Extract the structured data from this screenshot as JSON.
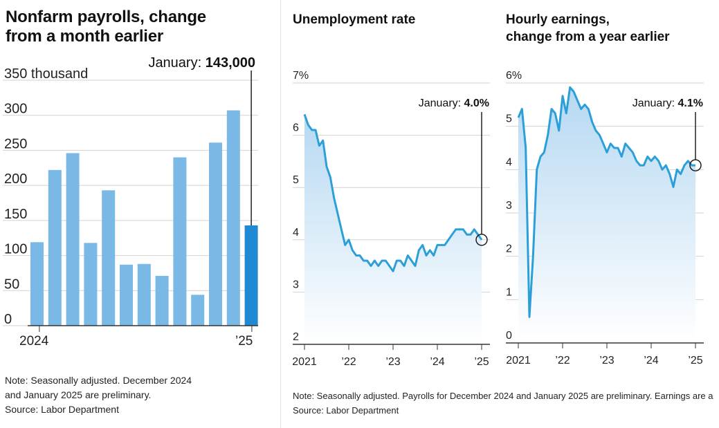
{
  "payrolls": {
    "title_line1": "Nonfarm payrolls, change",
    "title_line2": "from a month earlier",
    "note_line1": "Note: Seasonally adjusted. December 2024",
    "note_line2": "and January 2025 are preliminary.",
    "source": "Source: Labor Department"
  },
  "unemployment": {
    "title": "Unemployment rate"
  },
  "earnings": {
    "title_line1": "Hourly earnings,",
    "title_line2": "change from a year earlier"
  },
  "right_note": {
    "line1": "Note: Seasonally adjusted. Payrolls for December 2024 and January 2025 are preliminary. Earnings are a",
    "line2": "Source: Labor Department"
  },
  "colors": {
    "bar": "#7ab8e6",
    "bar_highlight": "#1f8ad3",
    "line": "#2b9fd8",
    "area_top": "#b5d8f2",
    "grid": "#d2d2d2",
    "axis": "#333333"
  },
  "chart_data": [
    {
      "type": "bar",
      "name": "payrolls",
      "categories": [
        "2024-01",
        "2024-02",
        "2024-03",
        "2024-04",
        "2024-05",
        "2024-06",
        "2024-07",
        "2024-08",
        "2024-09",
        "2024-10",
        "2024-11",
        "2024-12",
        "2025-01"
      ],
      "values": [
        119,
        222,
        246,
        118,
        193,
        87,
        88,
        71,
        240,
        44,
        261,
        307,
        143
      ],
      "ylim": [
        0,
        350
      ],
      "yticks": [
        "350 thousand",
        "300",
        "250",
        "200",
        "150",
        "100",
        "50",
        "0"
      ],
      "ytick_values": [
        350,
        300,
        250,
        200,
        150,
        100,
        50,
        0
      ],
      "xtick_labels": [
        "2024",
        "’25"
      ],
      "highlight_index": 12,
      "annotation_prefix": "January:",
      "annotation_value": "143,000"
    },
    {
      "type": "area",
      "name": "unemployment",
      "x_start": "2021-01",
      "values": [
        6.4,
        6.2,
        6.1,
        6.1,
        5.8,
        5.9,
        5.4,
        5.2,
        4.8,
        4.5,
        4.2,
        3.9,
        4.0,
        3.8,
        3.7,
        3.7,
        3.6,
        3.6,
        3.5,
        3.6,
        3.5,
        3.6,
        3.6,
        3.5,
        3.4,
        3.6,
        3.6,
        3.5,
        3.7,
        3.6,
        3.5,
        3.8,
        3.9,
        3.7,
        3.8,
        3.7,
        3.9,
        3.9,
        3.9,
        4.0,
        4.1,
        4.2,
        4.2,
        4.2,
        4.1,
        4.1,
        4.2,
        4.1,
        4.0
      ],
      "ylim": [
        2,
        7
      ],
      "yticks": [
        "7%",
        "6",
        "5",
        "4",
        "3",
        "2"
      ],
      "ytick_values": [
        7,
        6,
        5,
        4,
        3,
        2
      ],
      "xtick_labels": [
        "2021",
        "’22",
        "’23",
        "’24",
        "’25"
      ],
      "annotation_prefix": "January:",
      "annotation_value": "4.0%"
    },
    {
      "type": "area",
      "name": "earnings",
      "x_start": "2021-01",
      "values": [
        5.2,
        5.4,
        4.5,
        0.6,
        2.0,
        4.0,
        4.3,
        4.4,
        4.8,
        5.4,
        5.3,
        4.9,
        5.7,
        5.3,
        5.9,
        5.8,
        5.6,
        5.4,
        5.5,
        5.4,
        5.1,
        4.9,
        4.8,
        4.6,
        4.4,
        4.6,
        4.5,
        4.5,
        4.3,
        4.6,
        4.5,
        4.4,
        4.2,
        4.1,
        4.1,
        4.3,
        4.2,
        4.3,
        4.2,
        4.0,
        4.1,
        3.9,
        3.6,
        4.0,
        3.9,
        4.1,
        4.2,
        4.1,
        4.1
      ],
      "ylim": [
        0,
        6
      ],
      "yticks": [
        "6%",
        "5",
        "4",
        "3",
        "2",
        "1",
        "0"
      ],
      "ytick_values": [
        6,
        5,
        4,
        3,
        2,
        1,
        0
      ],
      "xtick_labels": [
        "2021",
        "’22",
        "’23",
        "’24",
        "’25"
      ],
      "annotation_prefix": "January:",
      "annotation_value": "4.1%"
    }
  ]
}
